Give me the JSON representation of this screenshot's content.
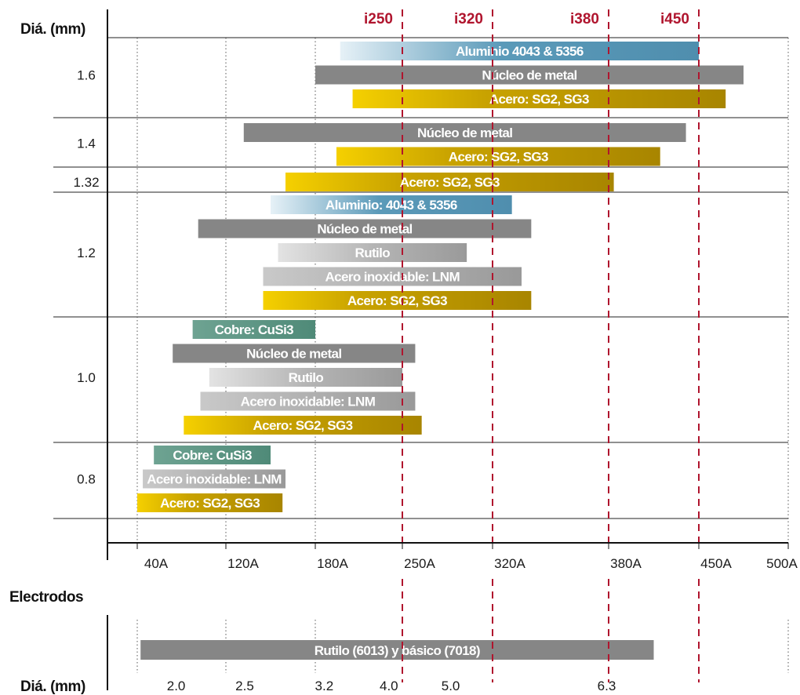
{
  "chart_data": {
    "type": "bar",
    "orientation": "horizontal-range",
    "ylabel": "Diá. (mm)",
    "x_ticks": [
      "40A",
      "120A",
      "180A",
      "250A",
      "320A",
      "380A",
      "450A",
      "500A"
    ],
    "x_tick_values": [
      40,
      120,
      180,
      250,
      320,
      380,
      450,
      500
    ],
    "xlim": [
      20,
      500
    ],
    "markers": [
      {
        "label": "i250",
        "value": 250
      },
      {
        "label": "i320",
        "value": 320
      },
      {
        "label": "i380",
        "value": 380
      },
      {
        "label": "i450",
        "value": 450
      }
    ],
    "groups": [
      {
        "diameter": "1.6",
        "bars": [
          {
            "label": "Aluminio 4043 & 5356",
            "start": 200,
            "end": 450,
            "color": "aluminum"
          },
          {
            "label": "Núcleo de metal",
            "start": 180,
            "end": 475,
            "color": "metal"
          },
          {
            "label": "Acero: SG2, SG3",
            "start": 210,
            "end": 465,
            "color": "steel"
          }
        ]
      },
      {
        "diameter": "1.4",
        "bars": [
          {
            "label": "Núcleo de metal",
            "start": 132,
            "end": 440,
            "color": "metal"
          },
          {
            "label": "Acero: SG2, SG3",
            "start": 197,
            "end": 420,
            "color": "steel"
          }
        ]
      },
      {
        "diameter": "1.32",
        "bars": [
          {
            "label": "Acero: SG2, SG3",
            "start": 160,
            "end": 384,
            "color": "steel"
          }
        ]
      },
      {
        "diameter": "1.2",
        "bars": [
          {
            "label": "Aluminio: 4043 & 5356",
            "start": 150,
            "end": 330,
            "color": "aluminum"
          },
          {
            "label": "Núcleo de metal",
            "start": 95,
            "end": 340,
            "color": "metal"
          },
          {
            "label": "Rutilo",
            "start": 155,
            "end": 300,
            "color": "rutile"
          },
          {
            "label": "Acero inoxidable: LNM",
            "start": 145,
            "end": 335,
            "color": "stainless"
          },
          {
            "label": "Acero: SG2, SG3",
            "start": 145,
            "end": 340,
            "color": "steel"
          }
        ]
      },
      {
        "diameter": "1.0",
        "bars": [
          {
            "label": "Cobre: CuSi3",
            "start": 90,
            "end": 180,
            "color": "copper"
          },
          {
            "label": "Núcleo de metal",
            "start": 72,
            "end": 260,
            "color": "metal"
          },
          {
            "label": "Rutilo",
            "start": 105,
            "end": 250,
            "color": "rutile"
          },
          {
            "label": "Acero inoxidable: LNM",
            "start": 97,
            "end": 260,
            "color": "stainless"
          },
          {
            "label": "Acero: SG2, SG3",
            "start": 82,
            "end": 265,
            "color": "steel"
          }
        ]
      },
      {
        "diameter": "0.8",
        "bars": [
          {
            "label": "Cobre: CuSi3",
            "start": 55,
            "end": 150,
            "color": "copper"
          },
          {
            "label": "Acero inoxidable: LNM",
            "start": 45,
            "end": 160,
            "color": "stainless"
          },
          {
            "label": "Acero: SG2, SG3",
            "start": 40,
            "end": 158,
            "color": "steel"
          }
        ]
      }
    ],
    "electrodes": {
      "title": "Electrodos",
      "ylabel": "Diá. (mm)",
      "bar": {
        "label": "Rutilo (6013) y básico (7018)",
        "start": 43,
        "end": 415,
        "color": "metal"
      },
      "diameters": [
        {
          "label": "2.0",
          "value": 85
        },
        {
          "label": "2.5",
          "value": 140
        },
        {
          "label": "3.2",
          "value": 196
        },
        {
          "label": "4.0",
          "value": 248
        },
        {
          "label": "5.0",
          "value": 296
        },
        {
          "label": "6.3",
          "value": 387
        }
      ]
    },
    "colors": {
      "aluminum": "#5b9ab9",
      "metal": "#868686",
      "steel": "#c9a300",
      "rutile": "#b5b5b5",
      "stainless": "#999999",
      "copper": "#4f8a78",
      "marker": "#b0152e"
    }
  }
}
